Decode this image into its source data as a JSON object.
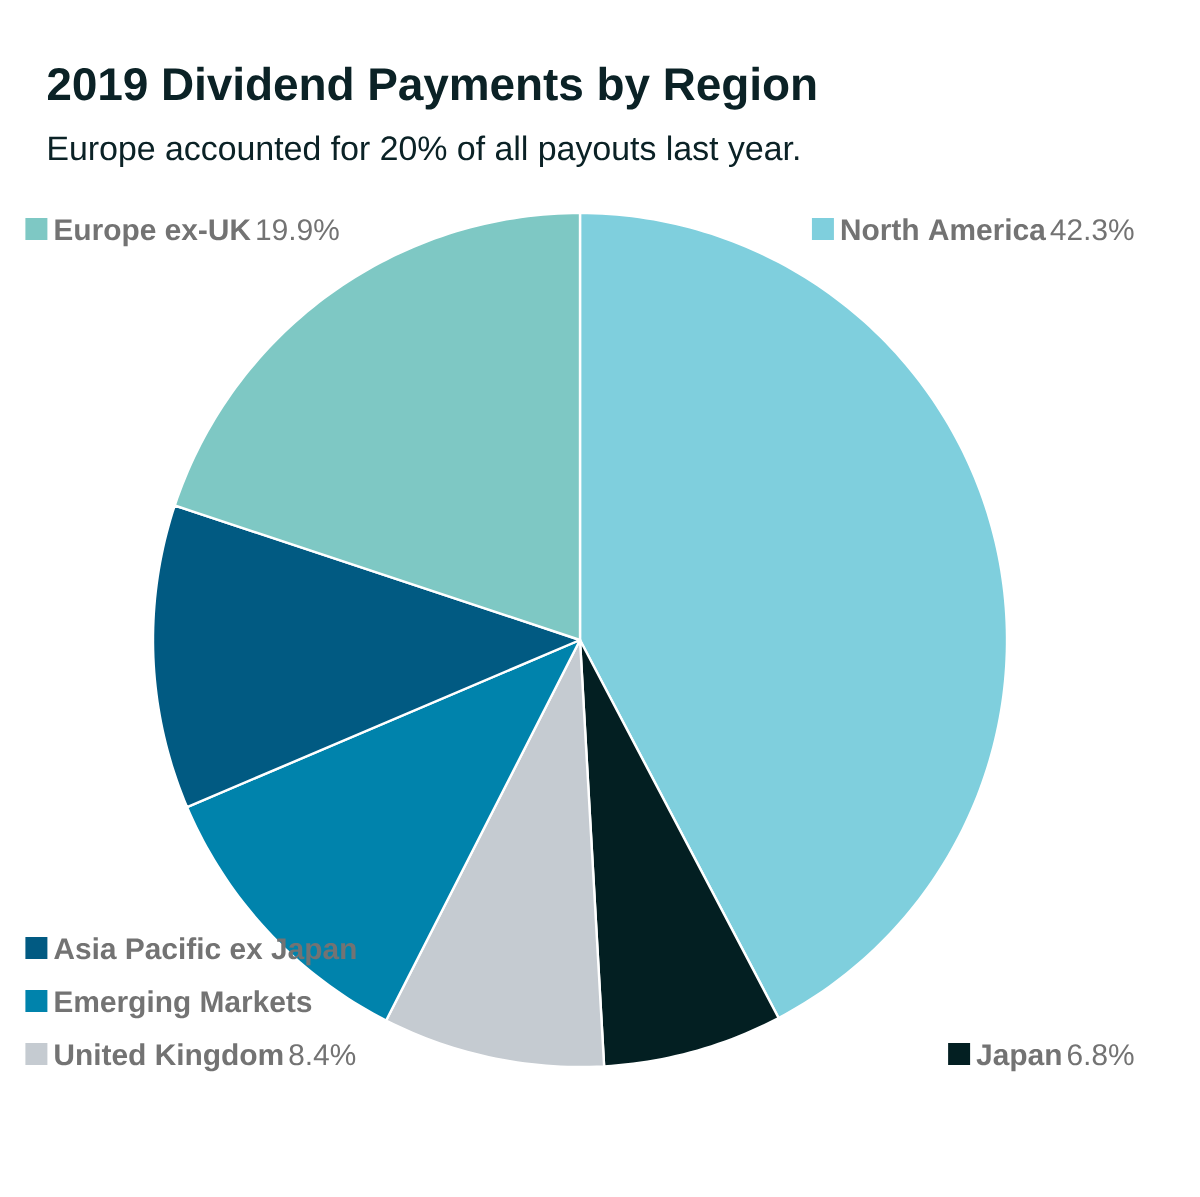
{
  "chart_data": {
    "type": "pie",
    "title": "2019 Dividend Payments by Region",
    "subtitle": "Europe accounted for 20% of all payouts last year.",
    "categories": [
      "North America",
      "Japan",
      "United Kingdom",
      "Emerging Markets",
      "Asia Pacific ex Japan",
      "Europe ex-UK"
    ],
    "values": [
      42.3,
      6.8,
      8.4,
      11.1,
      11.5,
      19.9
    ],
    "colors": [
      "#7fcfdd",
      "#031f22",
      "#c5cbd1",
      "#0083ac",
      "#015a82",
      "#7ec8c4"
    ],
    "value_labels": [
      "42.3%",
      "6.8%",
      "8.4%",
      null,
      null,
      "19.9%"
    ],
    "legend": "bottom left"
  }
}
